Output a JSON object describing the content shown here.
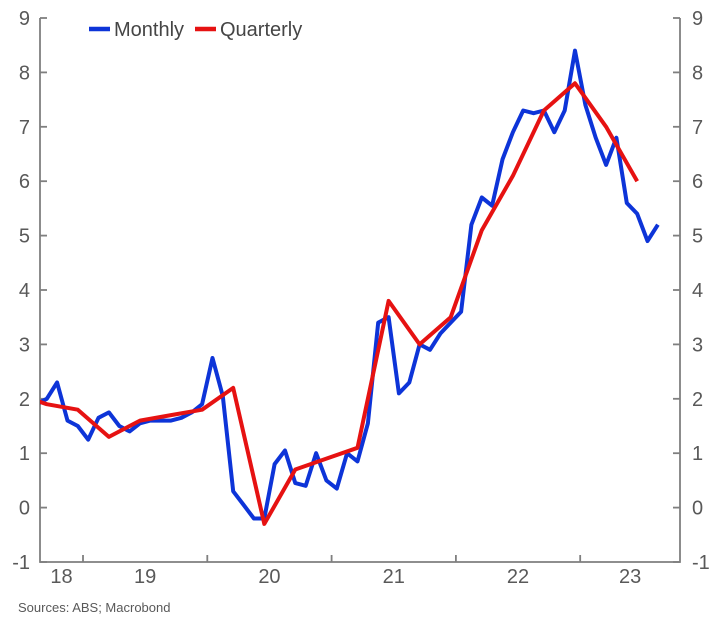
{
  "source_note": "Sources: ABS; Macrobond",
  "colors": {
    "monthly_line": "#0d34d8",
    "quarterly_line": "#e61212",
    "axis": "#7f7f7f",
    "axis_text": "#595959",
    "legend_text": "#454545",
    "background": "#ffffff"
  },
  "legend": {
    "position": "top-left",
    "items": [
      {
        "label": "Monthly",
        "color": "#0d34d8"
      },
      {
        "label": "Quarterly",
        "color": "#e61212"
      }
    ]
  },
  "chart_data": {
    "type": "line",
    "title": "",
    "xlabel": "",
    "ylabel": "",
    "grid": false,
    "ylim": [
      -1,
      9
    ],
    "y_ticks": [
      -1,
      0,
      1,
      2,
      3,
      4,
      5,
      6,
      7,
      8,
      9
    ],
    "y_axis_sides": [
      "left",
      "right"
    ],
    "x_domain_years": [
      2018.654,
      2023.803
    ],
    "x_tick_years": [
      2019,
      2020,
      2021,
      2022,
      2023
    ],
    "x_year_labels": [
      {
        "label": "18",
        "year": 2018
      },
      {
        "label": "19",
        "year": 2019
      },
      {
        "label": "20",
        "year": 2020
      },
      {
        "label": "21",
        "year": 2021
      },
      {
        "label": "22",
        "year": 2022
      },
      {
        "label": "23",
        "year": 2023
      }
    ],
    "series": [
      {
        "name": "Monthly",
        "color": "#0d34d8",
        "points": [
          [
            "2018-08",
            1.9
          ],
          [
            "2018-09",
            2.0
          ],
          [
            "2018-10",
            2.3
          ],
          [
            "2018-11",
            1.6
          ],
          [
            "2018-12",
            1.5
          ],
          [
            "2019-01",
            1.25
          ],
          [
            "2019-02",
            1.65
          ],
          [
            "2019-03",
            1.75
          ],
          [
            "2019-04",
            1.5
          ],
          [
            "2019-05",
            1.4
          ],
          [
            "2019-06",
            1.55
          ],
          [
            "2019-07",
            1.6
          ],
          [
            "2019-08",
            1.6
          ],
          [
            "2019-09",
            1.6
          ],
          [
            "2019-10",
            1.65
          ],
          [
            "2019-11",
            1.75
          ],
          [
            "2019-12",
            1.9
          ],
          [
            "2020-01",
            2.75
          ],
          [
            "2020-02",
            2.05
          ],
          [
            "2020-03",
            0.3
          ],
          [
            "2020-04",
            0.05
          ],
          [
            "2020-05",
            -0.2
          ],
          [
            "2020-06",
            -0.2
          ],
          [
            "2020-07",
            0.8
          ],
          [
            "2020-08",
            1.05
          ],
          [
            "2020-09",
            0.45
          ],
          [
            "2020-10",
            0.4
          ],
          [
            "2020-11",
            1.0
          ],
          [
            "2020-12",
            0.5
          ],
          [
            "2021-01",
            0.35
          ],
          [
            "2021-02",
            1.0
          ],
          [
            "2021-03",
            0.85
          ],
          [
            "2021-04",
            1.55
          ],
          [
            "2021-05",
            3.4
          ],
          [
            "2021-06",
            3.5
          ],
          [
            "2021-07",
            2.1
          ],
          [
            "2021-08",
            2.3
          ],
          [
            "2021-09",
            3.0
          ],
          [
            "2021-10",
            2.9
          ],
          [
            "2021-11",
            3.2
          ],
          [
            "2021-12",
            3.4
          ],
          [
            "2022-01",
            3.6
          ],
          [
            "2022-02",
            5.2
          ],
          [
            "2022-03",
            5.7
          ],
          [
            "2022-04",
            5.55
          ],
          [
            "2022-05",
            6.4
          ],
          [
            "2022-06",
            6.9
          ],
          [
            "2022-07",
            7.3
          ],
          [
            "2022-08",
            7.25
          ],
          [
            "2022-09",
            7.3
          ],
          [
            "2022-10",
            6.9
          ],
          [
            "2022-11",
            7.3
          ],
          [
            "2022-12",
            8.4
          ],
          [
            "2023-01",
            7.4
          ],
          [
            "2023-02",
            6.8
          ],
          [
            "2023-03",
            6.3
          ],
          [
            "2023-04",
            6.8
          ],
          [
            "2023-05",
            5.6
          ],
          [
            "2023-06",
            5.4
          ],
          [
            "2023-07",
            4.9
          ],
          [
            "2023-08",
            5.2
          ]
        ]
      },
      {
        "name": "Quarterly",
        "color": "#e61212",
        "points": [
          [
            "2018-06",
            2.1
          ],
          [
            "2018-09",
            1.9
          ],
          [
            "2018-12",
            1.8
          ],
          [
            "2019-03",
            1.3
          ],
          [
            "2019-06",
            1.6
          ],
          [
            "2019-09",
            1.7
          ],
          [
            "2019-12",
            1.8
          ],
          [
            "2020-03",
            2.2
          ],
          [
            "2020-06",
            -0.3
          ],
          [
            "2020-09",
            0.7
          ],
          [
            "2020-12",
            0.9
          ],
          [
            "2021-03",
            1.1
          ],
          [
            "2021-06",
            3.8
          ],
          [
            "2021-09",
            3.0
          ],
          [
            "2021-12",
            3.5
          ],
          [
            "2022-03",
            5.1
          ],
          [
            "2022-06",
            6.1
          ],
          [
            "2022-09",
            7.3
          ],
          [
            "2022-12",
            7.8
          ],
          [
            "2023-03",
            7.0
          ],
          [
            "2023-06",
            6.0
          ]
        ]
      }
    ]
  }
}
